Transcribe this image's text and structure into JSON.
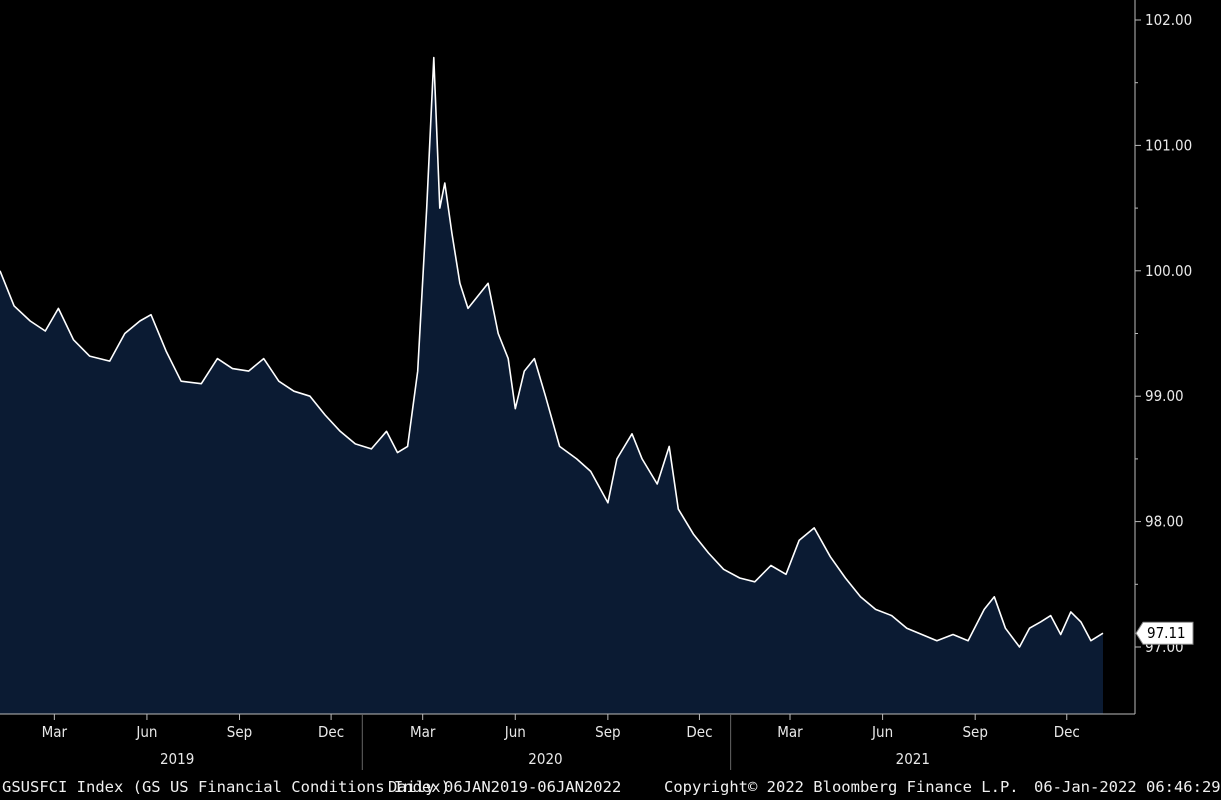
{
  "chart_data": {
    "type": "area",
    "title": "",
    "ylabel": "",
    "ylim": [
      96.5,
      102.1
    ],
    "y_ticks": [
      "102.00",
      "101.00",
      "100.00",
      "99.00",
      "98.00",
      "97.00"
    ],
    "y_tick_values": [
      102,
      101,
      100,
      99,
      98,
      97
    ],
    "x_ticks": [
      {
        "label": "Mar",
        "date": "2019-03-01"
      },
      {
        "label": "Jun",
        "date": "2019-06-01"
      },
      {
        "label": "Sep",
        "date": "2019-09-01"
      },
      {
        "label": "Dec",
        "date": "2019-12-01"
      },
      {
        "label": "Mar",
        "date": "2020-03-01"
      },
      {
        "label": "Jun",
        "date": "2020-06-01"
      },
      {
        "label": "Sep",
        "date": "2020-09-01"
      },
      {
        "label": "Dec",
        "date": "2020-12-01"
      },
      {
        "label": "Mar",
        "date": "2021-03-01"
      },
      {
        "label": "Jun",
        "date": "2021-06-01"
      },
      {
        "label": "Sep",
        "date": "2021-09-01"
      },
      {
        "label": "Dec",
        "date": "2021-12-01"
      }
    ],
    "years": [
      {
        "label": "2019",
        "date": "2019-07-01"
      },
      {
        "label": "2020",
        "date": "2020-07-01"
      },
      {
        "label": "2021",
        "date": "2021-07-01"
      }
    ],
    "last_value_label": "97.11",
    "series": [
      {
        "x": [
          "2019-01-06",
          "2019-01-20",
          "2019-02-05",
          "2019-02-20",
          "2019-03-05",
          "2019-03-20",
          "2019-04-05",
          "2019-04-25",
          "2019-05-10",
          "2019-05-25",
          "2019-06-05",
          "2019-06-20",
          "2019-07-05",
          "2019-07-25",
          "2019-08-10",
          "2019-08-25",
          "2019-09-10",
          "2019-09-25",
          "2019-10-10",
          "2019-10-25",
          "2019-11-10",
          "2019-11-25",
          "2019-12-10",
          "2019-12-25",
          "2020-01-10",
          "2020-01-25",
          "2020-02-05",
          "2020-02-15",
          "2020-02-25",
          "2020-03-05",
          "2020-03-12",
          "2020-03-18",
          "2020-03-23",
          "2020-03-30",
          "2020-04-07",
          "2020-04-15",
          "2020-04-25",
          "2020-05-05",
          "2020-05-15",
          "2020-05-25",
          "2020-06-01",
          "2020-06-10",
          "2020-06-20",
          "2020-07-01",
          "2020-07-15",
          "2020-08-01",
          "2020-08-15",
          "2020-09-01",
          "2020-09-10",
          "2020-09-25",
          "2020-10-05",
          "2020-10-20",
          "2020-11-01",
          "2020-11-10",
          "2020-11-25",
          "2020-12-10",
          "2020-12-25",
          "2021-01-10",
          "2021-01-25",
          "2021-02-10",
          "2021-02-25",
          "2021-03-10",
          "2021-03-25",
          "2021-04-10",
          "2021-04-25",
          "2021-05-10",
          "2021-05-25",
          "2021-06-10",
          "2021-06-25",
          "2021-07-10",
          "2021-07-25",
          "2021-08-10",
          "2021-08-25",
          "2021-09-10",
          "2021-09-20",
          "2021-10-01",
          "2021-10-15",
          "2021-10-25",
          "2021-11-05",
          "2021-11-15",
          "2021-11-25",
          "2021-12-05",
          "2021-12-15",
          "2021-12-25",
          "2022-01-06"
        ],
        "values": [
          100.0,
          99.72,
          99.6,
          99.52,
          99.7,
          99.45,
          99.32,
          99.28,
          99.5,
          99.6,
          99.65,
          99.36,
          99.12,
          99.1,
          99.3,
          99.22,
          99.2,
          99.3,
          99.12,
          99.04,
          99.0,
          98.85,
          98.72,
          98.62,
          98.58,
          98.72,
          98.55,
          98.6,
          99.2,
          100.5,
          101.7,
          100.5,
          100.7,
          100.3,
          99.9,
          99.7,
          99.8,
          99.9,
          99.5,
          99.3,
          98.9,
          99.2,
          99.3,
          99.0,
          98.6,
          98.5,
          98.4,
          98.15,
          98.5,
          98.7,
          98.5,
          98.3,
          98.6,
          98.1,
          97.9,
          97.75,
          97.62,
          97.55,
          97.52,
          97.65,
          97.58,
          97.85,
          97.95,
          97.72,
          97.55,
          97.4,
          97.3,
          97.25,
          97.15,
          97.1,
          97.05,
          97.1,
          97.05,
          97.3,
          97.4,
          97.15,
          97.0,
          97.15,
          97.2,
          97.25,
          97.1,
          97.28,
          97.2,
          97.05,
          97.11
        ]
      }
    ]
  },
  "footer": {
    "ticker": "GSUSFCI Index (GS US Financial Conditions Index)",
    "range": "Daily 06JAN2019-06JAN2022",
    "copyright": "Copyright© 2022 Bloomberg Finance L.P.",
    "timestamp": "06-Jan-2022 06:46:29"
  },
  "colors": {
    "background": "#000000",
    "area_fill": "#0b1b33",
    "line": "#ffffff",
    "axis": "#bbbbbb"
  }
}
